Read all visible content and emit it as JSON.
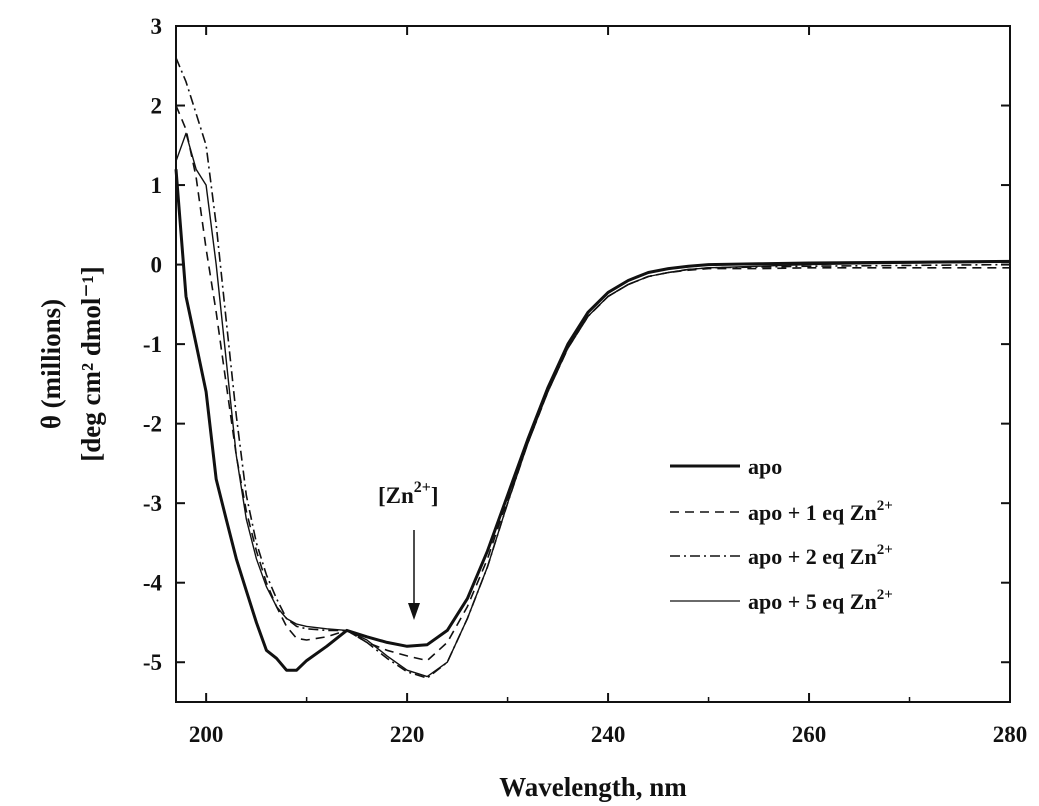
{
  "chart_data": {
    "type": "line",
    "title": "",
    "xlabel": "Wavelength, nm",
    "ylabel_line1": "θ (millions)",
    "ylabel_line2": "[deg cm² dmol⁻¹]",
    "xlim": [
      197,
      280
    ],
    "ylim": [
      -5.5,
      3
    ],
    "xticks": [
      200,
      220,
      240,
      260,
      280
    ],
    "yticks": [
      3,
      2,
      1,
      0,
      -1,
      -2,
      -3,
      -4,
      -5
    ],
    "grid": false,
    "legend_position": "lower-right",
    "annotation": {
      "text_main": "[Zn",
      "text_sup": "2+",
      "text_end": "]",
      "points_to": {
        "x": 221,
        "y": -4.75
      }
    },
    "series": [
      {
        "name": "apo",
        "style": "solid-thick",
        "x": [
          197,
          198,
          199,
          200,
          201,
          202,
          203,
          204,
          205,
          206,
          207,
          208,
          209,
          210,
          212,
          214,
          216,
          218,
          220,
          222,
          224,
          226,
          228,
          230,
          232,
          234,
          236,
          238,
          240,
          242,
          244,
          246,
          248,
          250,
          255,
          260,
          270,
          280
        ],
        "y": [
          1.2,
          -0.4,
          -1.0,
          -1.6,
          -2.7,
          -3.2,
          -3.7,
          -4.1,
          -4.5,
          -4.85,
          -4.95,
          -5.1,
          -5.1,
          -4.98,
          -4.8,
          -4.6,
          -4.68,
          -4.75,
          -4.8,
          -4.78,
          -4.6,
          -4.2,
          -3.6,
          -2.9,
          -2.2,
          -1.55,
          -1.0,
          -0.6,
          -0.35,
          -0.2,
          -0.1,
          -0.05,
          -0.02,
          0.0,
          0.01,
          0.02,
          0.03,
          0.04
        ]
      },
      {
        "name": "apo + 1 eq Zn",
        "name_sup": "2+",
        "style": "dashed",
        "x": [
          197,
          198,
          199,
          200,
          201,
          202,
          203,
          204,
          205,
          206,
          207,
          208,
          209,
          210,
          212,
          214,
          216,
          218,
          220,
          222,
          224,
          226,
          228,
          230,
          232,
          234,
          236,
          238,
          240,
          242,
          244,
          246,
          248,
          250,
          255,
          260,
          270,
          280
        ],
        "y": [
          2.0,
          1.7,
          1.1,
          0.2,
          -0.6,
          -1.5,
          -2.4,
          -3.1,
          -3.6,
          -4.0,
          -4.3,
          -4.55,
          -4.7,
          -4.72,
          -4.68,
          -4.6,
          -4.75,
          -4.85,
          -4.92,
          -4.98,
          -4.75,
          -4.3,
          -3.7,
          -2.95,
          -2.25,
          -1.6,
          -1.05,
          -0.65,
          -0.4,
          -0.25,
          -0.15,
          -0.1,
          -0.07,
          -0.05,
          -0.05,
          -0.04,
          -0.04,
          -0.04
        ]
      },
      {
        "name": "apo + 2 eq Zn",
        "name_sup": "2+",
        "style": "dashdot",
        "x": [
          197,
          198,
          199,
          200,
          201,
          202,
          203,
          204,
          205,
          206,
          207,
          208,
          209,
          210,
          212,
          214,
          216,
          218,
          220,
          222,
          224,
          226,
          228,
          230,
          232,
          234,
          236,
          238,
          240,
          242,
          244,
          246,
          248,
          250,
          255,
          260,
          270,
          280
        ],
        "y": [
          2.6,
          2.3,
          1.9,
          1.5,
          0.5,
          -0.7,
          -1.9,
          -2.9,
          -3.5,
          -3.9,
          -4.2,
          -4.45,
          -4.55,
          -4.58,
          -4.6,
          -4.6,
          -4.75,
          -4.95,
          -5.12,
          -5.2,
          -5.0,
          -4.45,
          -3.8,
          -3.0,
          -2.25,
          -1.6,
          -1.05,
          -0.65,
          -0.4,
          -0.25,
          -0.15,
          -0.1,
          -0.06,
          -0.04,
          -0.03,
          -0.02,
          -0.01,
          0.0
        ]
      },
      {
        "name": "apo + 5 eq Zn",
        "name_sup": "2+",
        "style": "solid-thin",
        "x": [
          197,
          198,
          199,
          200,
          201,
          202,
          203,
          204,
          205,
          206,
          207,
          208,
          209,
          210,
          212,
          214,
          216,
          218,
          220,
          222,
          224,
          226,
          228,
          230,
          232,
          234,
          236,
          238,
          240,
          242,
          244,
          246,
          248,
          250,
          255,
          260,
          270,
          280
        ],
        "y": [
          1.3,
          1.65,
          1.2,
          1.0,
          0.0,
          -1.2,
          -2.4,
          -3.2,
          -3.7,
          -4.05,
          -4.3,
          -4.45,
          -4.52,
          -4.55,
          -4.58,
          -4.6,
          -4.72,
          -4.92,
          -5.1,
          -5.18,
          -5.0,
          -4.45,
          -3.8,
          -3.0,
          -2.25,
          -1.6,
          -1.05,
          -0.65,
          -0.4,
          -0.25,
          -0.15,
          -0.1,
          -0.06,
          -0.04,
          -0.02,
          0.0,
          0.02,
          0.03
        ]
      }
    ]
  }
}
